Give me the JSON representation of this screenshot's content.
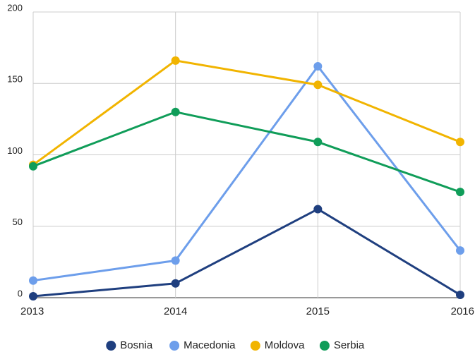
{
  "chart_data": {
    "type": "line",
    "x": [
      2013,
      2014,
      2015,
      2016
    ],
    "xlim": [
      2013,
      2016
    ],
    "xticks": [
      2013,
      2014,
      2015,
      2016
    ],
    "ylim": [
      0,
      200
    ],
    "yticks": [
      0,
      50,
      100,
      150,
      200
    ],
    "grid": true,
    "legend": "bottom",
    "series": [
      {
        "name": "Bosnia",
        "color": "#1f3f7f",
        "values": [
          1,
          10,
          62,
          2
        ]
      },
      {
        "name": "Macedonia",
        "color": "#6d9eeb",
        "values": [
          12,
          26,
          162,
          33
        ]
      },
      {
        "name": "Moldova",
        "color": "#f1b400",
        "values": [
          93,
          166,
          149,
          109
        ]
      },
      {
        "name": "Serbia",
        "color": "#109d59",
        "values": [
          92,
          130,
          109,
          74
        ]
      }
    ]
  }
}
